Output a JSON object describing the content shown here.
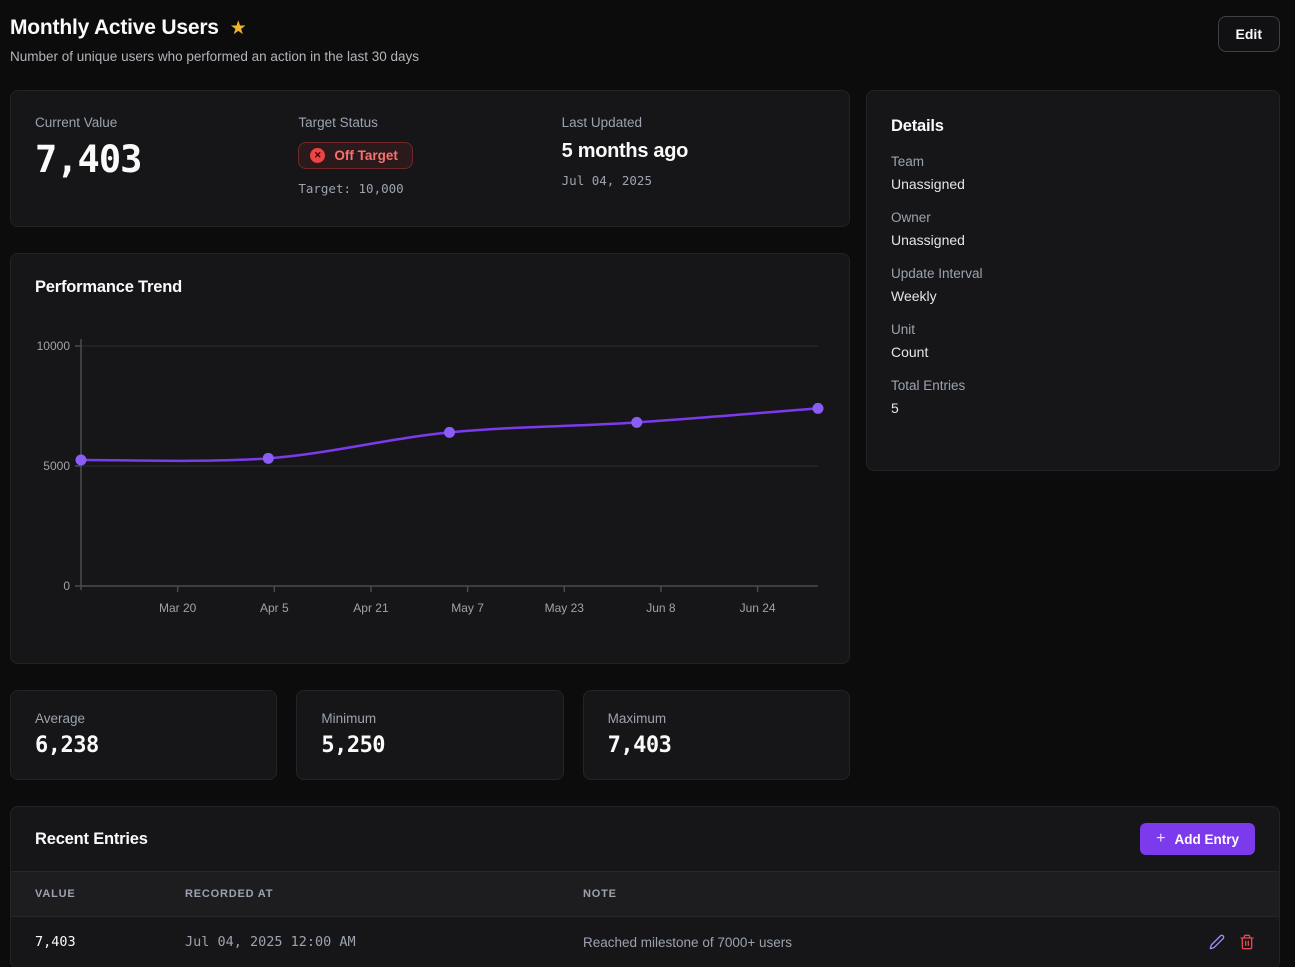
{
  "header": {
    "title": "Monthly Active Users",
    "subtitle": "Number of unique users who performed an action in the last 30 days",
    "edit_button": "Edit",
    "favorite_icon": "star-filled",
    "star_color": "#f0b429"
  },
  "overview": {
    "current_value": {
      "label": "Current Value",
      "value": "7,403"
    },
    "target_status": {
      "label": "Target Status",
      "badge": "Off Target",
      "badge_icon": "x-circle-icon",
      "target_line": "Target: 10,000"
    },
    "last_updated": {
      "label": "Last Updated",
      "relative": "5 months ago",
      "date": "Jul 04, 2025"
    }
  },
  "details": {
    "title": "Details",
    "items": [
      {
        "label": "Team",
        "value": "Unassigned"
      },
      {
        "label": "Owner",
        "value": "Unassigned"
      },
      {
        "label": "Update Interval",
        "value": "Weekly"
      },
      {
        "label": "Unit",
        "value": "Count"
      },
      {
        "label": "Total Entries",
        "value": "5"
      }
    ]
  },
  "chart": {
    "title": "Performance Trend"
  },
  "chart_data": {
    "type": "line",
    "title": "Performance Trend",
    "x_day_offsets": [
      0,
      31,
      61,
      92,
      122
    ],
    "values": [
      5250,
      5320,
      6400,
      6817,
      7403
    ],
    "x_ticks": [
      {
        "day": 16,
        "label": "Mar 20"
      },
      {
        "day": 32,
        "label": "Apr 5"
      },
      {
        "day": 48,
        "label": "Apr 21"
      },
      {
        "day": 64,
        "label": "May 7"
      },
      {
        "day": 80,
        "label": "May 23"
      },
      {
        "day": 96,
        "label": "Jun 8"
      },
      {
        "day": 112,
        "label": "Jun 24"
      }
    ],
    "y_ticks": [
      {
        "value": 0,
        "label": "0"
      },
      {
        "value": 5000,
        "label": "5000"
      },
      {
        "value": 10000,
        "label": "10000"
      }
    ],
    "ylim": [
      0,
      10000
    ],
    "grid": "horizontal",
    "legend": "none",
    "line_color": "#7c3aed",
    "point_color": "#8b5cf6",
    "axis_color": "#4a4a50",
    "grid_color": "#2e2e33",
    "tick_label_color": "#a1a1aa"
  },
  "stats": [
    {
      "label": "Average",
      "value": "6,238"
    },
    {
      "label": "Minimum",
      "value": "5,250"
    },
    {
      "label": "Maximum",
      "value": "7,403"
    }
  ],
  "entries": {
    "title": "Recent Entries",
    "add_button": "Add Entry",
    "columns": [
      "VALUE",
      "RECORDED AT",
      "NOTE"
    ],
    "rows": [
      {
        "value": "7,403",
        "recorded_at": "Jul 04, 2025 12:00 AM",
        "note": "Reached milestone of 7000+ users"
      }
    ]
  },
  "colors": {
    "accent_purple": "#7c3aed",
    "danger_red": "#ef4444",
    "badge_text": "#f87171",
    "star_gold": "#f0b429",
    "card_bg": "#161618",
    "page_bg": "#0c0c0d"
  }
}
